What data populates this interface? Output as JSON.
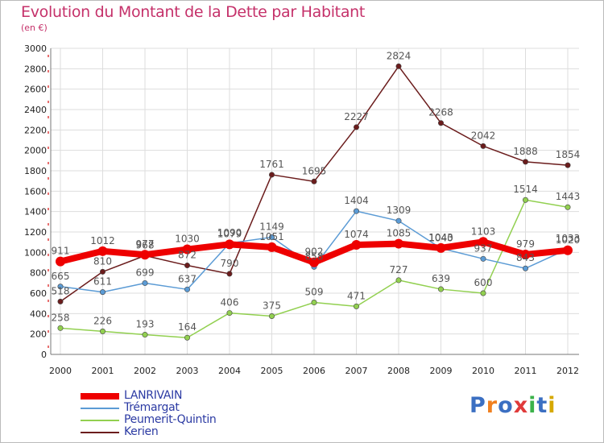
{
  "title": "Evolution du Montant de la Dette par Habitant",
  "subtitle": "(en €)",
  "logo_text": "Proxiti",
  "chart_data": {
    "type": "line",
    "x": [
      "2000",
      "2001",
      "2002",
      "2003",
      "2004",
      "2005",
      "2006",
      "2007",
      "2008",
      "2009",
      "2010",
      "2011",
      "2012"
    ],
    "ylim": [
      0,
      3000
    ],
    "yticks": [
      0,
      200,
      400,
      600,
      800,
      1000,
      1200,
      1400,
      1600,
      1800,
      2000,
      2200,
      2400,
      2600,
      2800,
      3000
    ],
    "grid": true,
    "legend_position": "bottom-left",
    "series": [
      {
        "name": "LANRIVAIN",
        "color": "#ee0000",
        "values": [
          911,
          1012,
          977,
          1030,
          1079,
          1051,
          902,
          1074,
          1085,
          1043,
          1103,
          979,
          1020
        ]
      },
      {
        "name": "Trémargat",
        "color": "#5b9bd5",
        "values": [
          665,
          611,
          699,
          637,
          1090,
          1149,
          858,
          1404,
          1309,
          1040,
          937,
          843,
          1033
        ]
      },
      {
        "name": "Peumerit-Quintin",
        "color": "#92d050",
        "values": [
          258,
          226,
          193,
          164,
          406,
          375,
          509,
          471,
          727,
          639,
          600,
          1514,
          1443
        ]
      },
      {
        "name": "Kerien",
        "color": "#6b1c1c",
        "values": [
          518,
          810,
          968,
          872,
          790,
          1761,
          1695,
          2227,
          2824,
          2268,
          2042,
          1888,
          1854
        ]
      }
    ]
  }
}
